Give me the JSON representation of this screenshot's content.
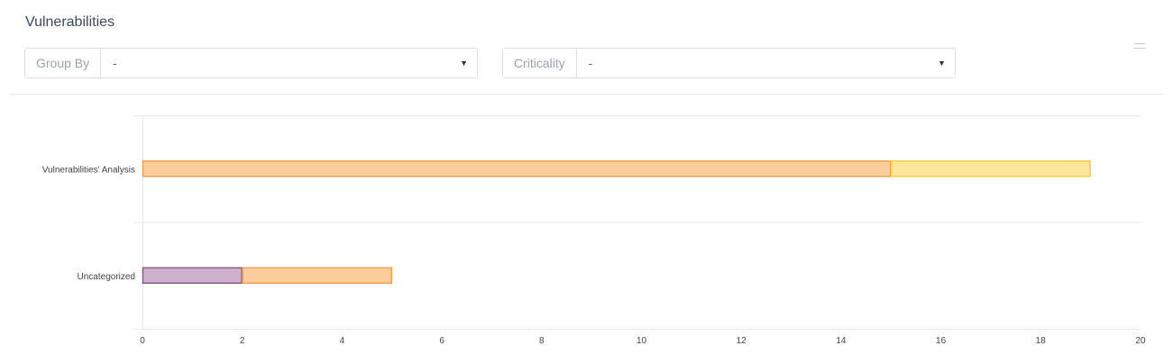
{
  "widget": {
    "title": "Vulnerabilities"
  },
  "filters": {
    "group_by": {
      "label": "Group By",
      "value": "-"
    },
    "criticality": {
      "label": "Criticality",
      "value": "-"
    }
  },
  "icons": {
    "menu": "drag-handle-icon",
    "caret": "caret-down-icon"
  },
  "chart_data": {
    "type": "bar",
    "orientation": "horizontal",
    "stacked": true,
    "categories": [
      "Vulnerabilities' Analysis",
      "Uncategorized"
    ],
    "series": [
      {
        "color_fill": "#cdb0cc",
        "color_stroke": "#8f5a8d",
        "values": [
          0,
          2
        ]
      },
      {
        "color_fill": "#fecd9c",
        "color_stroke": "#f0a250",
        "values": [
          15,
          3
        ]
      },
      {
        "color_fill": "#fee79c",
        "color_stroke": "#f5cf3c",
        "values": [
          4,
          0
        ]
      }
    ],
    "xlim": [
      0,
      20
    ],
    "xticks": [
      0,
      2,
      4,
      6,
      8,
      10,
      12,
      14,
      16,
      18,
      20
    ],
    "grid": true,
    "legend": "none"
  }
}
